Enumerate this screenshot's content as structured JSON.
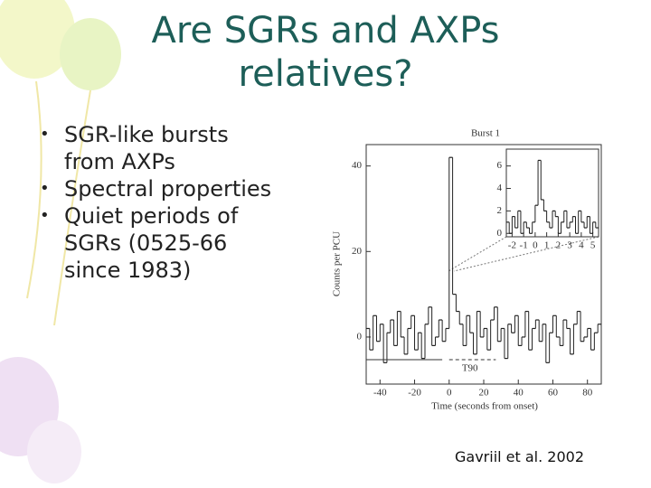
{
  "slide": {
    "title_lines": [
      "Are SGRs and AXPs",
      "relatives?"
    ],
    "bullets": [
      [
        "SGR-like bursts",
        "from AXPs"
      ],
      [
        "Spectral properties"
      ],
      [
        "Quiet periods of",
        "SGRs (0525-66",
        "since 1983)"
      ]
    ],
    "citation": "Gavriil et al. 2002"
  },
  "chart_data": [
    {
      "type": "histogram",
      "title": "Burst 1",
      "x_label": "Time (seconds from onset)",
      "y_label": "Counts per PCU",
      "annotation": "T90",
      "bins": [
        -48,
        -46,
        -44,
        -42,
        -40,
        -38,
        -36,
        -34,
        -32,
        -30,
        -28,
        -26,
        -24,
        -22,
        -20,
        -18,
        -16,
        -14,
        -12,
        -10,
        -8,
        -6,
        -4,
        -2,
        0,
        2,
        4,
        6,
        8,
        10,
        12,
        14,
        16,
        18,
        20,
        22,
        24,
        26,
        28,
        30,
        32,
        34,
        36,
        38,
        40,
        42,
        44,
        46,
        48,
        50,
        52,
        54,
        56,
        58,
        60,
        62,
        64,
        66,
        68,
        70,
        72,
        74,
        76,
        78,
        80,
        82,
        84,
        86,
        88
      ],
      "values": [
        2,
        -3,
        5,
        -1,
        3,
        -6,
        1,
        4,
        -2,
        6,
        0,
        -4,
        2,
        5,
        -3,
        1,
        -5,
        3,
        7,
        -2,
        0,
        4,
        -1,
        2,
        42,
        10,
        6,
        3,
        -2,
        5,
        1,
        -4,
        6,
        0,
        2,
        -3,
        4,
        7,
        -1,
        2,
        -5,
        3,
        1,
        5,
        -2,
        0,
        6,
        -3,
        2,
        4,
        -1,
        3,
        -6,
        1,
        5,
        0,
        -2,
        4,
        2,
        -4,
        3,
        6,
        -1,
        0,
        2,
        -3,
        1,
        3
      ],
      "xlim": [
        -48,
        88
      ],
      "ylim": [
        -11,
        45
      ],
      "xticks": [
        -40,
        -20,
        0,
        20,
        40,
        60,
        80
      ],
      "yticks": [
        0,
        20,
        40
      ],
      "color": "#222222"
    },
    {
      "type": "histogram",
      "bins": [
        -2.5,
        -2.25,
        -2,
        -1.75,
        -1.5,
        -1.25,
        -1,
        -0.75,
        -0.5,
        -0.25,
        0,
        0.25,
        0.5,
        0.75,
        1,
        1.25,
        1.5,
        1.75,
        2,
        2.25,
        2.5,
        2.75,
        3,
        3.25,
        3.5,
        3.75,
        4,
        4.25,
        4.5,
        4.75,
        5,
        5.25,
        5.5
      ],
      "values": [
        1,
        0,
        1.5,
        0.5,
        2,
        0,
        1,
        0.5,
        0,
        1,
        2.5,
        6.5,
        3,
        2,
        1,
        0.5,
        2,
        1.5,
        0,
        1,
        2,
        0.5,
        1,
        1.5,
        0,
        2,
        1,
        0.5,
        1.5,
        0,
        1,
        0.5
      ],
      "xlim": [
        -2.5,
        5.5
      ],
      "ylim": [
        -0.3,
        7.5
      ],
      "xticks": [
        -2,
        -1,
        0,
        1,
        2,
        3,
        4,
        5
      ],
      "yticks": [
        0,
        2,
        4,
        6
      ],
      "color": "#222222"
    }
  ]
}
